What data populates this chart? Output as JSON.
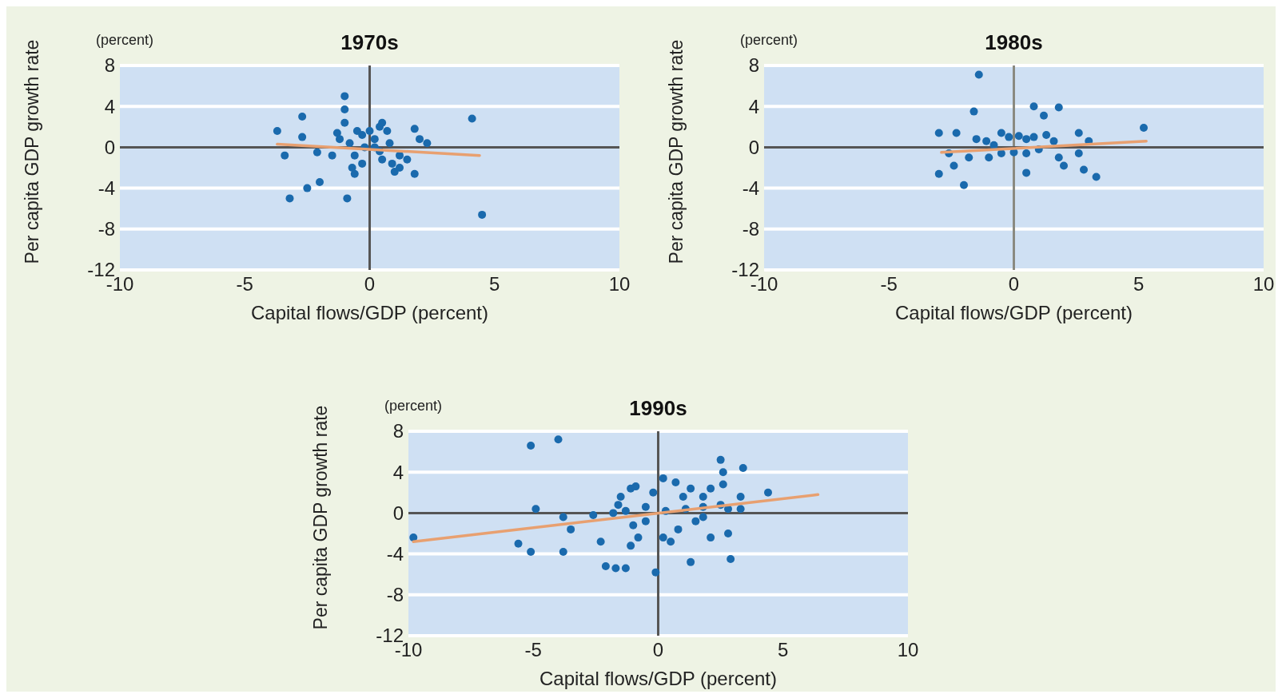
{
  "chart_data": [
    {
      "type": "scatter",
      "title": "1970s",
      "xlabel": "Capital flows/GDP (percent)",
      "ylabel": "Per capita GDP growth rate",
      "annotations": [
        "(percent)"
      ],
      "xlim": [
        -10,
        10
      ],
      "xticks": [
        -10,
        -5,
        0,
        5,
        10
      ],
      "ylim": [
        -12,
        8
      ],
      "yticks": [
        -12,
        -8,
        -4,
        0,
        4,
        8
      ],
      "grid": "y",
      "marker": "circle",
      "ref_lines": [
        {
          "axis": "x",
          "value": 0,
          "color": "#555555"
        }
      ],
      "series": [
        {
          "color": "#1a6aad",
          "x": [
            -3.7,
            -3.4,
            -2.7,
            -3.2,
            -2.5,
            -2.0,
            -2.7,
            -1.0,
            -1.0,
            -1.0,
            -0.9,
            -2.1,
            -1.5,
            -1.3,
            -1.2,
            -0.8,
            -0.5,
            -0.3,
            -0.6,
            -0.7,
            -0.6,
            -0.3,
            0,
            0.2,
            0.4,
            0.5,
            0.7,
            0.8,
            0.4,
            0.5,
            0.9,
            1.0,
            1.2,
            1.2,
            1.5,
            1.8,
            1.8,
            2.0,
            2.3,
            4.1,
            4.5,
            -0.2,
            0.2
          ],
          "values": [
            1.6,
            -0.8,
            3.0,
            -5.0,
            -4.0,
            -3.4,
            1.0,
            5.0,
            3.7,
            2.4,
            -5.0,
            -0.5,
            -0.8,
            1.4,
            0.8,
            0.4,
            1.6,
            1.2,
            -0.8,
            -2.0,
            -2.6,
            -1.6,
            1.6,
            0.8,
            2.0,
            2.4,
            1.6,
            0.4,
            -0.4,
            -1.2,
            -1.6,
            -2.4,
            -2.0,
            -0.8,
            -1.2,
            1.8,
            -2.6,
            0.8,
            0.4,
            2.8,
            -6.6,
            0,
            0
          ]
        },
        {
          "type": "line",
          "color": "#e8a070",
          "x": [
            -3.7,
            4.4
          ],
          "values": [
            0.3,
            -0.8
          ],
          "marker": "none"
        }
      ]
    },
    {
      "type": "scatter",
      "title": "1980s",
      "xlabel": "Capital flows/GDP (percent)",
      "ylabel": "Per capita GDP growth rate",
      "annotations": [
        "(percent)"
      ],
      "xlim": [
        -10,
        10
      ],
      "xticks": [
        -10,
        -5,
        0,
        5,
        10
      ],
      "ylim": [
        -12,
        8
      ],
      "yticks": [
        -12,
        -8,
        -4,
        0,
        4,
        8
      ],
      "grid": "y",
      "marker": "circle",
      "ref_lines": [
        {
          "axis": "x",
          "value": 0,
          "color": "#8a8a80"
        }
      ],
      "series": [
        {
          "color": "#1a6aad",
          "x": [
            -1.4,
            -1.6,
            0.8,
            1.2,
            1.8,
            5.2,
            -3.0,
            -2.3,
            -2.6,
            -3.0,
            -2.0,
            -2.4,
            -1.8,
            -1.5,
            -1.0,
            -0.5,
            -0.2,
            0.2,
            0.5,
            0.8,
            -0.5,
            0,
            0.5,
            1.0,
            1.3,
            1.6,
            1.8,
            2.0,
            0.5,
            2.6,
            2.8,
            3.3,
            2.6,
            3.0,
            -1.1,
            -0.8
          ],
          "values": [
            7.1,
            3.5,
            4.0,
            3.1,
            3.9,
            1.9,
            1.4,
            1.4,
            -0.6,
            -2.6,
            -3.7,
            -1.8,
            -1.0,
            0.8,
            -1.0,
            1.4,
            1.0,
            1.1,
            0.8,
            1.0,
            -0.6,
            -0.5,
            -0.6,
            -0.2,
            1.2,
            0.6,
            -1.0,
            -1.8,
            -2.5,
            -0.6,
            -2.2,
            -2.9,
            1.4,
            0.6,
            0.6,
            0.2
          ]
        },
        {
          "type": "line",
          "color": "#e8a070",
          "x": [
            -2.9,
            5.3
          ],
          "values": [
            -0.5,
            0.6
          ],
          "marker": "none"
        }
      ]
    },
    {
      "type": "scatter",
      "title": "1990s",
      "xlabel": "Capital flows/GDP (percent)",
      "ylabel": "Per capita GDP growth rate",
      "annotations": [
        "(percent)"
      ],
      "xlim": [
        -10,
        10
      ],
      "xticks": [
        -10,
        -5,
        0,
        5,
        10
      ],
      "ylim": [
        -12,
        8
      ],
      "yticks": [
        -12,
        -8,
        -4,
        0,
        4,
        8
      ],
      "grid": "y",
      "marker": "circle",
      "ref_lines": [
        {
          "axis": "x",
          "value": 0,
          "color": "#555555"
        }
      ],
      "series": [
        {
          "color": "#1a6aad",
          "x": [
            -9.8,
            -5.1,
            -4.0,
            -4.9,
            -5.6,
            -5.1,
            -3.8,
            -3.8,
            -3.5,
            -2.6,
            -2.3,
            -2.1,
            -1.7,
            -1.3,
            -0.1,
            -1.6,
            -1.5,
            -1.1,
            -0.9,
            -0.2,
            0.2,
            0.7,
            1.0,
            1.1,
            1.3,
            1.8,
            2.1,
            2.5,
            2.6,
            2.6,
            3.4,
            3.3,
            4.4,
            2.5,
            2.8,
            3.3,
            2.9,
            1.3,
            2.1,
            2.8,
            -1.0,
            -0.8,
            -1.1,
            -0.5,
            0.2,
            0.5,
            0.8,
            1.5,
            1.8,
            -1.8,
            -1.3,
            -0.5,
            0.3,
            1.8
          ],
          "values": [
            -2.4,
            6.6,
            7.2,
            0.4,
            -3.0,
            -3.8,
            -0.4,
            -3.8,
            -1.6,
            -0.2,
            -2.8,
            -5.2,
            -5.4,
            -5.4,
            -5.8,
            0.8,
            1.6,
            2.4,
            2.6,
            2.0,
            3.4,
            3.0,
            1.6,
            0.4,
            2.4,
            1.6,
            2.4,
            5.2,
            4.0,
            2.8,
            4.4,
            1.6,
            2.0,
            0.8,
            0.4,
            0.4,
            -4.5,
            -4.8,
            -2.4,
            -2.0,
            -1.2,
            -2.4,
            -3.2,
            -0.8,
            -2.4,
            -2.8,
            -1.6,
            -0.8,
            -0.4,
            0,
            0.2,
            0.6,
            0.2,
            0.6
          ]
        },
        {
          "type": "line",
          "color": "#e8a070",
          "x": [
            -9.8,
            6.4
          ],
          "values": [
            -2.8,
            1.8
          ],
          "marker": "none"
        }
      ]
    }
  ]
}
